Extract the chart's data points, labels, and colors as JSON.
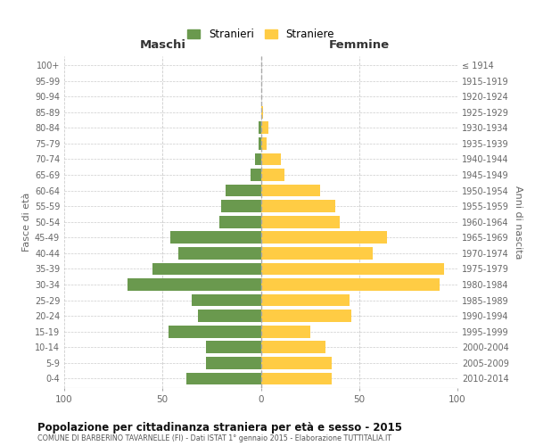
{
  "age_groups": [
    "0-4",
    "5-9",
    "10-14",
    "15-19",
    "20-24",
    "25-29",
    "30-34",
    "35-39",
    "40-44",
    "45-49",
    "50-54",
    "55-59",
    "60-64",
    "65-69",
    "70-74",
    "75-79",
    "80-84",
    "85-89",
    "90-94",
    "95-99",
    "100+"
  ],
  "birth_years": [
    "2010-2014",
    "2005-2009",
    "2000-2004",
    "1995-1999",
    "1990-1994",
    "1985-1989",
    "1980-1984",
    "1975-1979",
    "1970-1974",
    "1965-1969",
    "1960-1964",
    "1955-1959",
    "1950-1954",
    "1945-1949",
    "1940-1944",
    "1935-1939",
    "1930-1934",
    "1925-1929",
    "1920-1924",
    "1915-1919",
    "≤ 1914"
  ],
  "maschi": [
    38,
    28,
    28,
    47,
    32,
    35,
    68,
    55,
    42,
    46,
    21,
    20,
    18,
    5,
    3,
    1,
    1,
    0,
    0,
    0,
    0
  ],
  "femmine": [
    36,
    36,
    33,
    25,
    46,
    45,
    91,
    93,
    57,
    64,
    40,
    38,
    30,
    12,
    10,
    3,
    4,
    1,
    0,
    0,
    0
  ],
  "male_color": "#6a994e",
  "female_color": "#ffcc44",
  "background_color": "#ffffff",
  "grid_color": "#cccccc",
  "title": "Popolazione per cittadinanza straniera per età e sesso - 2015",
  "subtitle": "COMUNE DI BARBERINO TAVARNELLE (FI) - Dati ISTAT 1° gennaio 2015 - Elaborazione TUTTITALIA.IT",
  "xlabel_left": "Maschi",
  "xlabel_right": "Femmine",
  "ylabel_left": "Fasce di età",
  "ylabel_right": "Anni di nascita",
  "legend_male": "Stranieri",
  "legend_female": "Straniere",
  "xlim": 100
}
